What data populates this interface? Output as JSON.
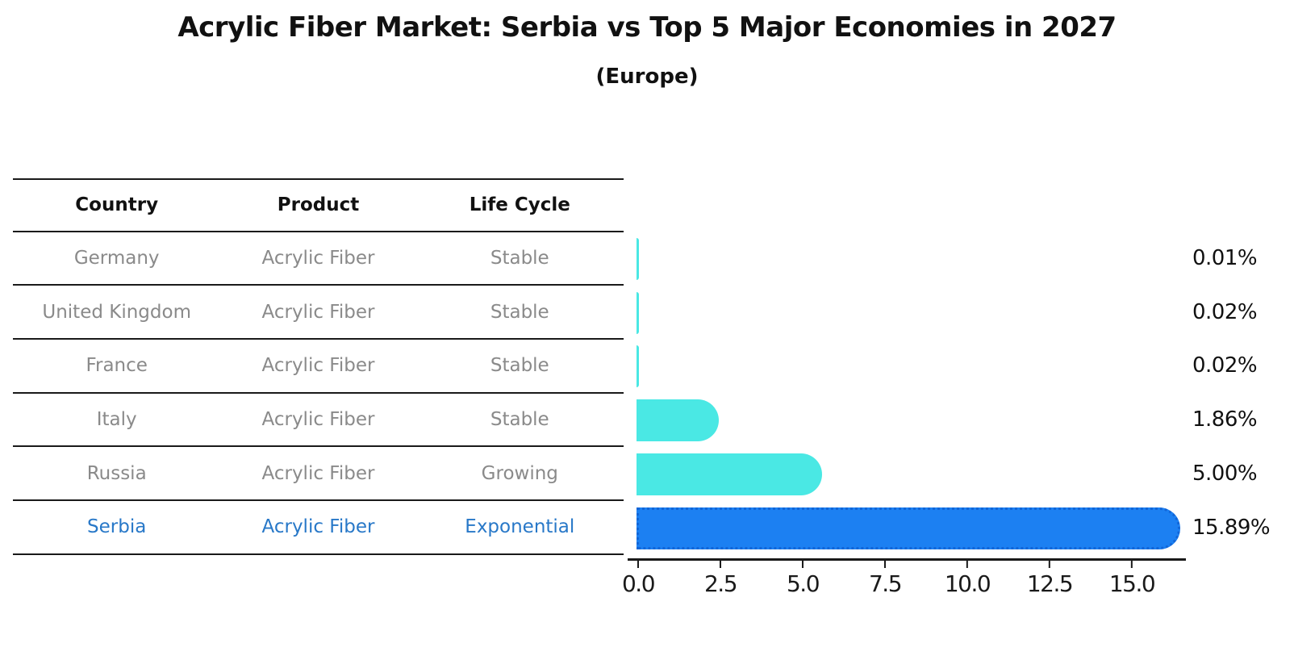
{
  "title": "Acrylic Fiber Market: Serbia vs Top 5 Major Economies in 2027",
  "subtitle": "(Europe)",
  "table": {
    "headers": [
      "Country",
      "Product",
      "Life Cycle"
    ],
    "rows": [
      {
        "country": "Germany",
        "product": "Acrylic Fiber",
        "life_cycle": "Stable",
        "highlight": false
      },
      {
        "country": "United Kingdom",
        "product": "Acrylic Fiber",
        "life_cycle": "Stable",
        "highlight": false
      },
      {
        "country": "France",
        "product": "Acrylic Fiber",
        "life_cycle": "Stable",
        "highlight": false
      },
      {
        "country": "Italy",
        "product": "Acrylic Fiber",
        "life_cycle": "Stable",
        "highlight": false
      },
      {
        "country": "Russia",
        "product": "Acrylic Fiber",
        "life_cycle": "Growing",
        "highlight": false
      },
      {
        "country": "Serbia",
        "product": "Acrylic Fiber",
        "life_cycle": "Exponential",
        "highlight": true
      }
    ]
  },
  "chart_data": {
    "type": "bar",
    "orientation": "horizontal",
    "title": "Acrylic Fiber Market: Serbia vs Top 5 Major Economies in 2027",
    "subtitle": "(Europe)",
    "categories": [
      "Germany",
      "United Kingdom",
      "France",
      "Italy",
      "Russia",
      "Serbia"
    ],
    "values": [
      0.01,
      0.02,
      0.02,
      1.86,
      5.0,
      15.89
    ],
    "value_labels": [
      "0.01%",
      "0.02%",
      "0.02%",
      "1.86%",
      "5.00%",
      "15.89%"
    ],
    "x_ticks": [
      "0.0",
      "2.5",
      "5.0",
      "7.5",
      "10.0",
      "12.5",
      "15.0"
    ],
    "xlim": [
      0,
      16.6
    ],
    "xlabel": "",
    "ylabel": "",
    "grid": false,
    "legend": false,
    "highlight_index": 5,
    "bar_color_default": "#4AE8E4",
    "bar_color_highlight": "#1C80F2",
    "highlight_border_color": "#1266D8"
  },
  "colors": {
    "background": "#FFFFFF",
    "text_primary": "#111111",
    "text_muted": "#8A8A8A",
    "highlight_text": "#2878C8",
    "axis": "#1A1A1A"
  }
}
